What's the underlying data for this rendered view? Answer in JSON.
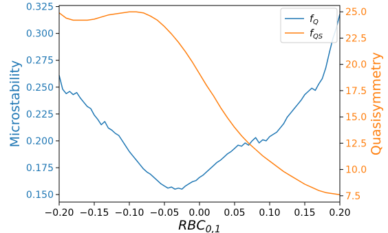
{
  "chart_data": {
    "type": "line",
    "xlabel": "RBC_{0,1}",
    "xlim": [
      -0.2,
      0.2
    ],
    "x_ticks": [
      "−0.20",
      "−0.15",
      "−0.10",
      "−0.05",
      "0.00",
      "0.05",
      "0.10",
      "0.15",
      "0.20"
    ],
    "left_axis": {
      "label": "Microstability",
      "ylim": [
        0.143,
        0.326
      ],
      "ticks": [
        "0.150",
        "0.175",
        "0.200",
        "0.225",
        "0.250",
        "0.275",
        "0.300",
        "0.325"
      ],
      "color": "#1f77b4"
    },
    "right_axis": {
      "label": "Quasisymmetry",
      "ylim": [
        6.9,
        25.6
      ],
      "ticks": [
        "7.5",
        "10.0",
        "12.5",
        "15.0",
        "17.5",
        "20.0",
        "22.5",
        "25.0"
      ],
      "color": "#ff7f0e"
    },
    "legend": {
      "placement": "top-right"
    },
    "series": [
      {
        "name": "f_Q",
        "axis": "left",
        "color": "#1f77b4",
        "x": [
          -0.2,
          -0.195,
          -0.19,
          -0.185,
          -0.18,
          -0.175,
          -0.17,
          -0.165,
          -0.16,
          -0.155,
          -0.15,
          -0.145,
          -0.14,
          -0.135,
          -0.13,
          -0.125,
          -0.12,
          -0.115,
          -0.11,
          -0.105,
          -0.1,
          -0.095,
          -0.09,
          -0.085,
          -0.08,
          -0.075,
          -0.07,
          -0.065,
          -0.06,
          -0.055,
          -0.05,
          -0.045,
          -0.04,
          -0.035,
          -0.03,
          -0.025,
          -0.02,
          -0.015,
          -0.01,
          -0.005,
          0.0,
          0.005,
          0.01,
          0.015,
          0.02,
          0.025,
          0.03,
          0.035,
          0.04,
          0.045,
          0.05,
          0.055,
          0.06,
          0.065,
          0.07,
          0.075,
          0.08,
          0.085,
          0.09,
          0.095,
          0.1,
          0.105,
          0.11,
          0.115,
          0.12,
          0.125,
          0.13,
          0.135,
          0.14,
          0.145,
          0.15,
          0.155,
          0.16,
          0.165,
          0.17,
          0.175,
          0.18,
          0.185,
          0.19,
          0.195,
          0.2
        ],
        "values": [
          0.261,
          0.248,
          0.244,
          0.246,
          0.243,
          0.245,
          0.24,
          0.236,
          0.232,
          0.23,
          0.224,
          0.22,
          0.215,
          0.218,
          0.212,
          0.21,
          0.207,
          0.205,
          0.2,
          0.195,
          0.19,
          0.186,
          0.182,
          0.178,
          0.174,
          0.171,
          0.169,
          0.166,
          0.163,
          0.16,
          0.158,
          0.156,
          0.157,
          0.155,
          0.156,
          0.155,
          0.158,
          0.16,
          0.162,
          0.163,
          0.166,
          0.168,
          0.171,
          0.174,
          0.177,
          0.18,
          0.182,
          0.185,
          0.188,
          0.19,
          0.193,
          0.196,
          0.195,
          0.198,
          0.196,
          0.2,
          0.203,
          0.198,
          0.201,
          0.2,
          0.204,
          0.206,
          0.208,
          0.212,
          0.216,
          0.222,
          0.226,
          0.23,
          0.234,
          0.238,
          0.243,
          0.246,
          0.249,
          0.247,
          0.253,
          0.258,
          0.268,
          0.282,
          0.295,
          0.305,
          0.318
        ]
      },
      {
        "name": "f_QS",
        "axis": "right",
        "color": "#ff7f0e",
        "x": [
          -0.2,
          -0.19,
          -0.18,
          -0.17,
          -0.16,
          -0.15,
          -0.14,
          -0.13,
          -0.12,
          -0.11,
          -0.1,
          -0.09,
          -0.08,
          -0.07,
          -0.06,
          -0.05,
          -0.04,
          -0.03,
          -0.02,
          -0.01,
          0.0,
          0.01,
          0.02,
          0.03,
          0.04,
          0.05,
          0.06,
          0.07,
          0.08,
          0.09,
          0.1,
          0.11,
          0.12,
          0.13,
          0.14,
          0.15,
          0.16,
          0.17,
          0.18,
          0.19,
          0.2
        ],
        "values": [
          24.9,
          24.4,
          24.2,
          24.2,
          24.2,
          24.3,
          24.5,
          24.7,
          24.8,
          24.9,
          25.0,
          25.0,
          24.9,
          24.6,
          24.2,
          23.6,
          22.9,
          22.1,
          21.2,
          20.2,
          19.1,
          18.0,
          17.0,
          15.9,
          14.9,
          14.0,
          13.2,
          12.5,
          11.9,
          11.3,
          10.8,
          10.3,
          9.8,
          9.4,
          9.0,
          8.6,
          8.3,
          8.0,
          7.8,
          7.7,
          7.6
        ]
      }
    ]
  }
}
